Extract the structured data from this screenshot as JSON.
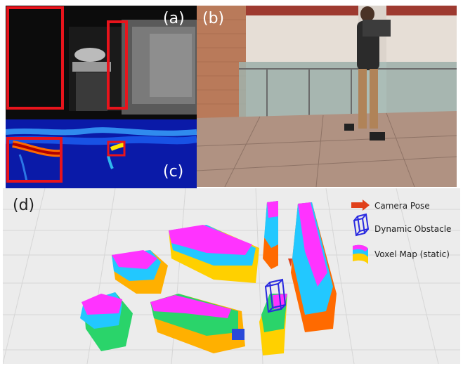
{
  "panels": {
    "a": "(a)",
    "b": "(b)",
    "c": "(c)",
    "d": "(d)"
  },
  "legend": {
    "camera_pose": "Camera Pose",
    "dynamic_obstacle": "Dynamic Obstacle",
    "voxel_map": "Voxel Map (static)"
  },
  "colors": {
    "highlight_box": "#e8141c",
    "camera_arrow": "#e0401a",
    "obstacle_box": "#2a2ae0",
    "voxel_top": "#ff33ff",
    "depth_bg": "#0d0d0d",
    "heatmap_bg": "#0a1aa8",
    "floor": "#ececec"
  }
}
